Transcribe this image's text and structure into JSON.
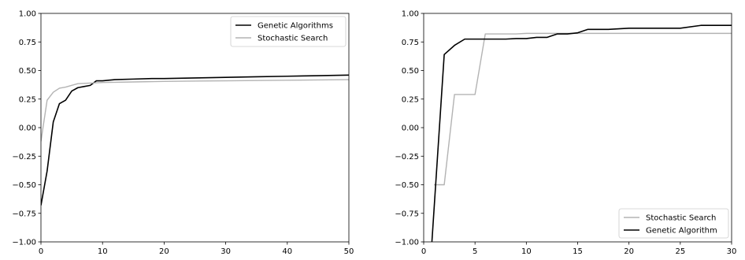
{
  "chart_data": [
    {
      "type": "line",
      "title": "",
      "xlabel": "",
      "ylabel": "",
      "xlim": [
        0,
        50
      ],
      "ylim": [
        -1.0,
        1.0
      ],
      "grid": false,
      "legend_position": "top-right",
      "xticks": [
        0,
        10,
        20,
        30,
        40,
        50
      ],
      "xtick_labels": [
        "0",
        "10",
        "20",
        "30",
        "40",
        "50"
      ],
      "yticks": [
        -1.0,
        -0.75,
        -0.5,
        -0.25,
        0.0,
        0.25,
        0.5,
        0.75,
        1.0
      ],
      "ytick_labels": [
        "−1.00",
        "−0.75",
        "−0.50",
        "−0.25",
        "0.00",
        "0.25",
        "0.50",
        "0.75",
        "1.00"
      ],
      "series": [
        {
          "name": "Genetic Algorithms",
          "color": "#000000",
          "x": [
            0,
            1,
            2,
            3,
            4,
            5,
            6,
            7,
            8,
            9,
            10,
            12,
            15,
            18,
            20,
            25,
            30,
            35,
            40,
            45,
            50
          ],
          "y": [
            -0.68,
            -0.38,
            0.05,
            0.21,
            0.24,
            0.32,
            0.35,
            0.36,
            0.37,
            0.41,
            0.41,
            0.42,
            0.425,
            0.43,
            0.43,
            0.435,
            0.44,
            0.445,
            0.45,
            0.455,
            0.46
          ]
        },
        {
          "name": "Stochastic Search",
          "color": "#b3b3b3",
          "x": [
            0,
            1,
            2,
            3,
            4,
            5,
            6,
            8,
            10,
            15,
            20,
            30,
            40,
            50
          ],
          "y": [
            -0.12,
            0.24,
            0.31,
            0.345,
            0.355,
            0.37,
            0.385,
            0.39,
            0.395,
            0.4,
            0.405,
            0.41,
            0.415,
            0.42
          ]
        }
      ]
    },
    {
      "type": "line",
      "title": "",
      "xlabel": "",
      "ylabel": "",
      "xlim": [
        0,
        30
      ],
      "ylim": [
        -1.0,
        1.0
      ],
      "grid": false,
      "legend_position": "bottom-right",
      "xticks": [
        0,
        5,
        10,
        15,
        20,
        25,
        30
      ],
      "xtick_labels": [
        "0",
        "5",
        "10",
        "15",
        "20",
        "25",
        "30"
      ],
      "yticks": [
        -1.0,
        -0.75,
        -0.5,
        -0.25,
        0.0,
        0.25,
        0.5,
        0.75,
        1.0
      ],
      "ytick_labels": [
        "−1.00",
        "−0.75",
        "−0.50",
        "−0.25",
        "0.00",
        "0.25",
        "0.50",
        "0.75",
        "1.00"
      ],
      "series": [
        {
          "name": "Stochastic Search",
          "color": "#b3b3b3",
          "x": [
            1,
            1.5,
            2,
            3,
            4,
            5,
            6,
            7,
            8,
            9,
            10,
            12,
            15,
            20,
            25,
            30
          ],
          "y": [
            -0.5,
            -0.5,
            -0.5,
            0.29,
            0.29,
            0.29,
            0.82,
            0.82,
            0.82,
            0.82,
            0.825,
            0.825,
            0.825,
            0.825,
            0.825,
            0.825
          ]
        },
        {
          "name": "Genetic Algorithm",
          "color": "#000000",
          "x": [
            0.8,
            2,
            3,
            4,
            5,
            6,
            7,
            8,
            9,
            10,
            11,
            12,
            13,
            14,
            15,
            16,
            18,
            20,
            22,
            25,
            27,
            28,
            30
          ],
          "y": [
            -1.0,
            0.64,
            0.72,
            0.775,
            0.775,
            0.775,
            0.775,
            0.775,
            0.78,
            0.78,
            0.79,
            0.79,
            0.82,
            0.82,
            0.83,
            0.86,
            0.86,
            0.87,
            0.87,
            0.87,
            0.895,
            0.895,
            0.895
          ]
        }
      ]
    }
  ]
}
